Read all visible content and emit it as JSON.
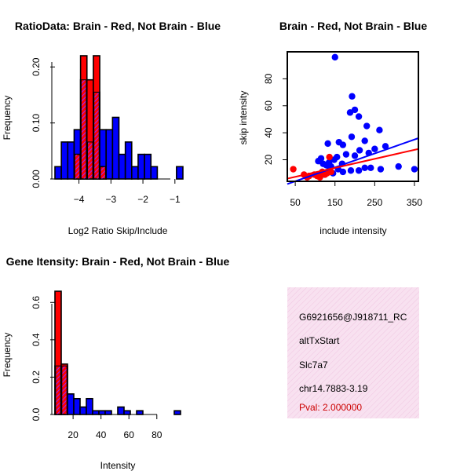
{
  "colors": {
    "red": "#ff0000",
    "blue": "#0000ff",
    "purple": "#a020f0",
    "panel_bg": "#f6d8ec",
    "pval": "#cc0000"
  },
  "chart_data": [
    {
      "type": "bar",
      "title": "RatioData: Brain - Red, Not Brain - Blue",
      "xlabel": "Log2 Ratio Skip/Include",
      "ylabel": "Frequency",
      "xlim": [
        -4.75,
        -0.75
      ],
      "ylim": [
        0,
        0.22
      ],
      "xticks": [
        -4,
        -3,
        -2,
        -1
      ],
      "xtick_labels": [
        "−4",
        "−3",
        "−2",
        "−1"
      ],
      "yticks": [
        0.0,
        0.1,
        0.2
      ],
      "ytick_labels": [
        "0.00",
        "0.10",
        "0.20"
      ],
      "bin_start": -4.75,
      "bin_width": 0.2,
      "series": [
        {
          "name": "Brain",
          "color": "red",
          "values": [
            0,
            0,
            0,
            0.044,
            0.22,
            0.177,
            0.22,
            0.022,
            0,
            0,
            0,
            0,
            0,
            0,
            0,
            0,
            0,
            0,
            0,
            0
          ]
        },
        {
          "name": "Not Brain",
          "color": "blue",
          "values": [
            0.022,
            0.066,
            0.066,
            0.088,
            0.177,
            0.066,
            0.155,
            0.088,
            0.088,
            0.11,
            0.044,
            0.066,
            0.022,
            0.044,
            0.044,
            0.022,
            0,
            0,
            0,
            0.022
          ]
        }
      ]
    },
    {
      "type": "scatter",
      "title": "Brain - Red, Not Brain - Blue",
      "xlabel": "include intensity",
      "ylabel": "skip intensity",
      "xlim": [
        30,
        360
      ],
      "ylim": [
        4,
        100
      ],
      "xticks": [
        50,
        150,
        250,
        350
      ],
      "yticks": [
        20,
        40,
        60,
        80
      ],
      "series": [
        {
          "name": "Not Brain",
          "color": "blue",
          "points": [
            [
              150,
              96
            ],
            [
              193,
              67
            ],
            [
              188,
              55
            ],
            [
              200,
              57
            ],
            [
              210,
              52
            ],
            [
              230,
              45
            ],
            [
              262,
              42
            ],
            [
              192,
              37
            ],
            [
              225,
              34
            ],
            [
              160,
              33
            ],
            [
              132,
              32
            ],
            [
              170,
              31
            ],
            [
              277,
              30
            ],
            [
              250,
              28
            ],
            [
              212,
              27
            ],
            [
              235,
              25
            ],
            [
              200,
              23
            ],
            [
              178,
              24
            ],
            [
              155,
              22
            ],
            [
              115,
              21
            ],
            [
              148,
              20
            ],
            [
              120,
              17
            ],
            [
              128,
              16
            ],
            [
              140,
              15
            ],
            [
              108,
              19
            ],
            [
              135,
              18
            ],
            [
              168,
              17
            ],
            [
              240,
              14
            ],
            [
              265,
              13
            ],
            [
              310,
              15
            ],
            [
              350,
              13
            ],
            [
              225,
              14
            ],
            [
              210,
              12
            ],
            [
              190,
              12
            ],
            [
              170,
              11
            ],
            [
              158,
              13
            ],
            [
              135,
              12
            ],
            [
              118,
              11
            ],
            [
              145,
              10
            ],
            [
              123,
              9
            ]
          ]
        },
        {
          "name": "Brain",
          "color": "red",
          "points": [
            [
              45,
              13
            ],
            [
              72,
              9
            ],
            [
              85,
              8
            ],
            [
              98,
              9
            ],
            [
              105,
              8
            ],
            [
              112,
              9
            ],
            [
              118,
              11
            ],
            [
              125,
              9
            ],
            [
              130,
              10
            ],
            [
              136,
              22
            ],
            [
              140,
              11
            ],
            [
              112,
              7
            ],
            [
              80,
              7
            ]
          ]
        }
      ],
      "fit_lines": [
        {
          "name": "Not Brain",
          "color": "blue",
          "x": [
            30,
            360
          ],
          "y": [
            2,
            36
          ]
        },
        {
          "name": "Brain",
          "color": "red",
          "x": [
            30,
            360
          ],
          "y": [
            6,
            28
          ]
        }
      ]
    },
    {
      "type": "bar",
      "title": "Gene Itensity: Brain - Red, Not Brain - Blue",
      "xlabel": "Intensity",
      "ylabel": "Frequency",
      "xlim": [
        7,
        97
      ],
      "ylim": [
        0,
        0.66
      ],
      "xticks": [
        20,
        40,
        60,
        80
      ],
      "yticks": [
        0.0,
        0.2,
        0.4,
        0.6
      ],
      "ytick_labels": [
        "0.0",
        "0.2",
        "0.4",
        "0.6"
      ],
      "bin_start": 7,
      "bin_width": 4.5,
      "series": [
        {
          "name": "Brain",
          "color": "red",
          "values": [
            0.66,
            0.27,
            0,
            0,
            0,
            0,
            0,
            0,
            0,
            0,
            0,
            0,
            0,
            0,
            0,
            0,
            0,
            0,
            0,
            0
          ]
        },
        {
          "name": "Not Brain",
          "color": "blue",
          "values": [
            0.26,
            0.26,
            0.11,
            0.085,
            0.04,
            0.085,
            0.02,
            0.02,
            0.02,
            0,
            0.04,
            0.02,
            0,
            0.02,
            0,
            0,
            0,
            0,
            0,
            0.02
          ]
        }
      ]
    }
  ],
  "info_panel": {
    "event_id": "G6921656@J918711_RC",
    "event_type": "altTxStart",
    "gene": "Slc7a7",
    "location": "chr14.7883-3.19",
    "pval": "Pval: 2.000000"
  }
}
